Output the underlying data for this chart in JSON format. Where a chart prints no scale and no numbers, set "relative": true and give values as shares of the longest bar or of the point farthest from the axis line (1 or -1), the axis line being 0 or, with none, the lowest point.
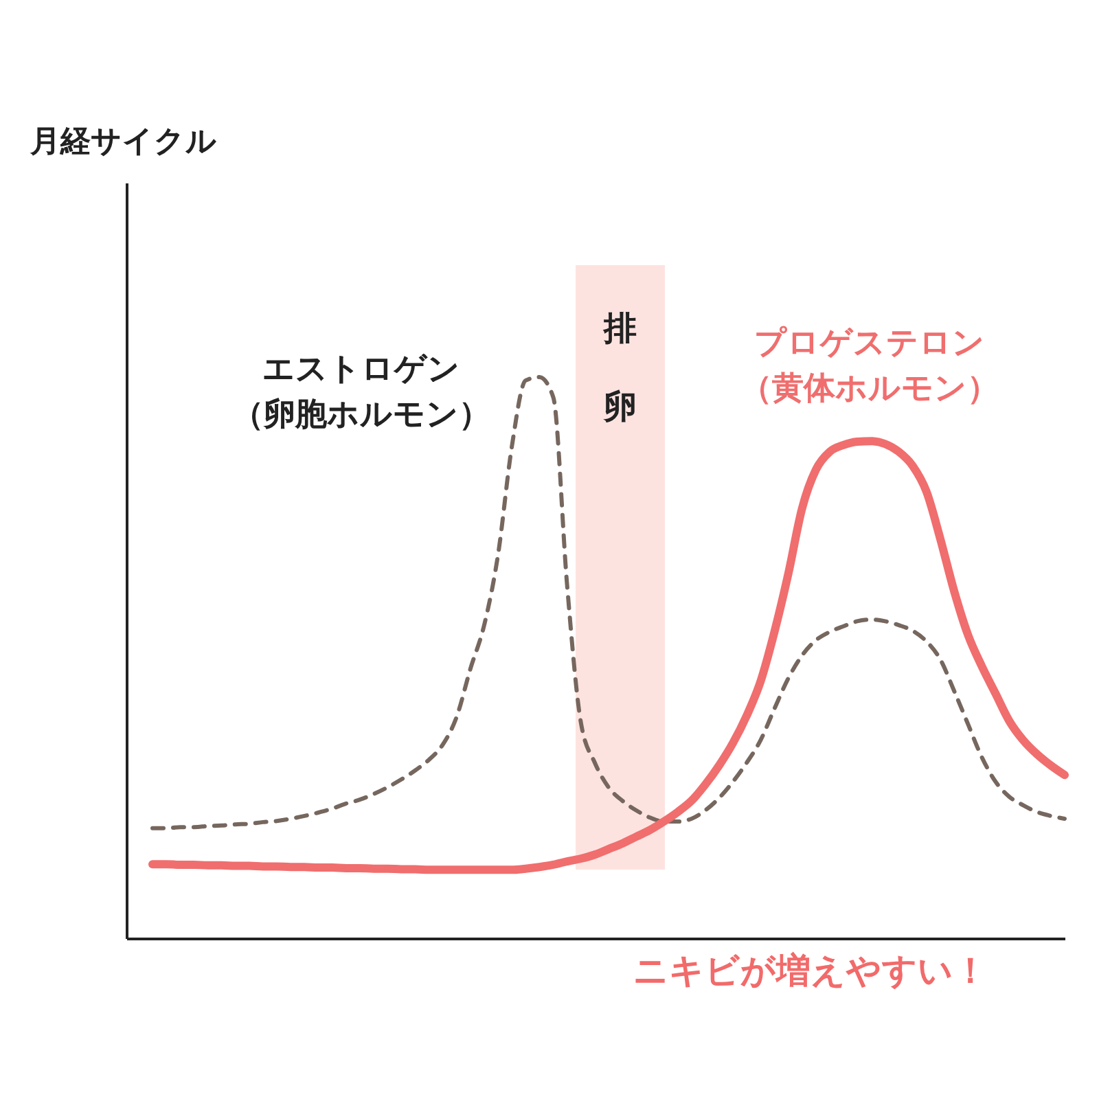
{
  "chart_data": {
    "type": "line",
    "relative": true,
    "title": "月経サイクル",
    "legend": false,
    "marker": "none",
    "categories": [
      null,
      null,
      null,
      null,
      null,
      null,
      null,
      null,
      null,
      null,
      null,
      null,
      null,
      null,
      null,
      null,
      null,
      null,
      null,
      null,
      null,
      null,
      null,
      null,
      null,
      null,
      null,
      null,
      null,
      null,
      null,
      null,
      null,
      null,
      null,
      null,
      null,
      null,
      null,
      null,
      null,
      null,
      null,
      null,
      null,
      null,
      null,
      null,
      null,
      null,
      null,
      null,
      null,
      null,
      null,
      null,
      null,
      null,
      null,
      null,
      null,
      null,
      null,
      null,
      null,
      null,
      null
    ],
    "series": [
      {
        "name": "エストロゲン（卵胞ホルモン）",
        "color": "#76675e",
        "line_style": "dashed",
        "values": [
          0.196,
          0.196,
          0.198,
          0.198,
          0.2,
          0.201,
          0.203,
          0.204,
          0.207,
          0.209,
          0.213,
          0.218,
          0.224,
          0.231,
          0.24,
          0.247,
          0.257,
          0.269,
          0.283,
          0.299,
          0.318,
          0.345,
          0.394,
          0.48,
          0.558,
          0.683,
          0.876,
          0.994,
          1.0,
          0.964,
          0.629,
          0.384,
          0.313,
          0.269,
          0.245,
          0.228,
          0.215,
          0.208,
          0.208,
          0.213,
          0.228,
          0.25,
          0.279,
          0.313,
          0.353,
          0.409,
          0.463,
          0.504,
          0.531,
          0.546,
          0.556,
          0.565,
          0.568,
          0.565,
          0.558,
          0.548,
          0.529,
          0.497,
          0.441,
          0.382,
          0.323,
          0.279,
          0.252,
          0.237,
          0.225,
          0.218,
          0.213
        ]
      },
      {
        "name": "プロゲステロン（黄体ホルモン）",
        "color": "#f06e6e",
        "line_style": "solid",
        "values": [
          0.132,
          0.132,
          0.131,
          0.131,
          0.13,
          0.13,
          0.129,
          0.129,
          0.128,
          0.128,
          0.127,
          0.127,
          0.126,
          0.126,
          0.125,
          0.125,
          0.124,
          0.124,
          0.123,
          0.123,
          0.122,
          0.122,
          0.122,
          0.122,
          0.122,
          0.122,
          0.122,
          0.124,
          0.127,
          0.131,
          0.137,
          0.142,
          0.149,
          0.159,
          0.169,
          0.181,
          0.193,
          0.208,
          0.225,
          0.245,
          0.274,
          0.308,
          0.348,
          0.397,
          0.458,
          0.546,
          0.649,
          0.766,
          0.835,
          0.867,
          0.879,
          0.885,
          0.886,
          0.881,
          0.867,
          0.842,
          0.796,
          0.712,
          0.619,
          0.541,
          0.485,
          0.436,
          0.387,
          0.353,
          0.328,
          0.308,
          0.291
        ]
      }
    ],
    "annotations": [
      "排卵",
      "ニキビが増えやすい！"
    ]
  }
}
